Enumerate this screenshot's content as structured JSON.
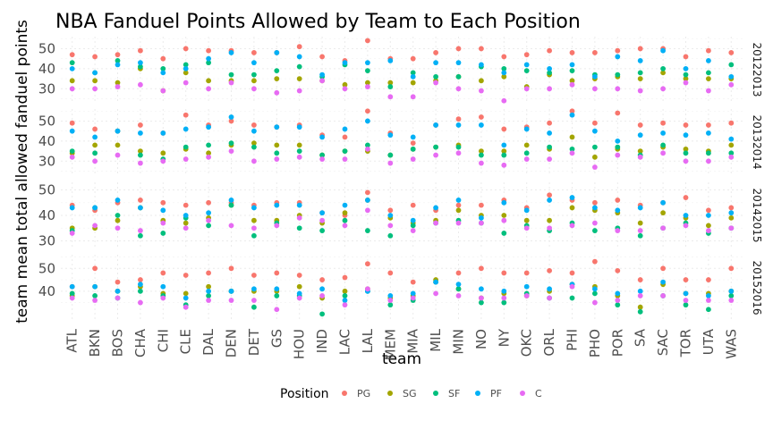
{
  "chart_data": {
    "type": "scatter",
    "title": "NBA Fanduel Points Allowed by Team to Each Position",
    "xlabel": "team",
    "ylabel": "team mean total allowed fanduel points",
    "legend": {
      "title": "Position",
      "placement": "bottom"
    },
    "categories": [
      "ATL",
      "BKN",
      "BOS",
      "CHA",
      "CHI",
      "CLE",
      "DAL",
      "DEN",
      "DET",
      "GS",
      "HOU",
      "IND",
      "LAC",
      "LAL",
      "MEM",
      "MIA",
      "MIL",
      "MIN",
      "NO",
      "NY",
      "OKC",
      "ORL",
      "PHI",
      "PHO",
      "POR",
      "SA",
      "SAC",
      "TOR",
      "UTA",
      "WAS"
    ],
    "positions": [
      {
        "name": "PG",
        "color": "#F8766D"
      },
      {
        "name": "SG",
        "color": "#A3A500"
      },
      {
        "name": "SF",
        "color": "#00BF7D"
      },
      {
        "name": "PF",
        "color": "#00B0F6"
      },
      {
        "name": "C",
        "color": "#E76BF3"
      }
    ],
    "panels": [
      {
        "season": "20122013",
        "ylim": [
          23,
          56
        ],
        "yticks": [
          30,
          40,
          50
        ],
        "series": {
          "PG": [
            47,
            46,
            47,
            49,
            45,
            50,
            49,
            49,
            48,
            48,
            51,
            46,
            44,
            54,
            45,
            45,
            48,
            50,
            50,
            46,
            47,
            49,
            48,
            48,
            49,
            50,
            50,
            46,
            49,
            48
          ],
          "SG": [
            34,
            34,
            33,
            40,
            29,
            38,
            34,
            34,
            34,
            35,
            35,
            34,
            32,
            33,
            33,
            33,
            34,
            36,
            34,
            36,
            31,
            37,
            34,
            35,
            36,
            35,
            38,
            35,
            35,
            35
          ],
          "SF": [
            43,
            38,
            44,
            41,
            40,
            42,
            43,
            37,
            37,
            39,
            41,
            36,
            42,
            39,
            31,
            38,
            36,
            36,
            41,
            40,
            39,
            38,
            39,
            37,
            37,
            38,
            40,
            37,
            38,
            42
          ],
          "PF": [
            40,
            38,
            42,
            43,
            38,
            40,
            45,
            48,
            43,
            48,
            46,
            37,
            43,
            43,
            44,
            36,
            43,
            43,
            42,
            38,
            42,
            40,
            42,
            36,
            46,
            44,
            49,
            40,
            44,
            36
          ],
          "C": [
            30,
            30,
            31,
            32,
            29,
            33,
            30,
            33,
            30,
            28,
            29,
            34,
            30,
            31,
            26,
            26,
            33,
            30,
            29,
            24,
            30,
            30,
            32,
            30,
            30,
            29,
            30,
            33,
            29,
            32
          ]
        }
      },
      {
        "season": "20132014",
        "ylim": [
          23,
          56
        ],
        "yticks": [
          30,
          40,
          50
        ],
        "series": {
          "PG": [
            49,
            46,
            45,
            48,
            44,
            53,
            48,
            50,
            48,
            47,
            48,
            43,
            42,
            55,
            44,
            39,
            48,
            51,
            52,
            46,
            47,
            49,
            55,
            49,
            54,
            48,
            49,
            48,
            48,
            49
          ],
          "SG": [
            34,
            38,
            38,
            35,
            34,
            36,
            34,
            38,
            39,
            38,
            38,
            33,
            35,
            35,
            33,
            36,
            37,
            38,
            35,
            35,
            38,
            36,
            42,
            32,
            36,
            35,
            37,
            36,
            35,
            38
          ],
          "SF": [
            35,
            34,
            45,
            33,
            31,
            37,
            38,
            39,
            37,
            34,
            35,
            33,
            35,
            38,
            33,
            36,
            37,
            37,
            33,
            33,
            34,
            37,
            36,
            37,
            37,
            33,
            38,
            34,
            34,
            34
          ],
          "PF": [
            45,
            42,
            45,
            44,
            44,
            46,
            47,
            52,
            45,
            47,
            47,
            42,
            46,
            50,
            43,
            42,
            48,
            48,
            48,
            38,
            46,
            44,
            53,
            45,
            40,
            43,
            44,
            43,
            44,
            41
          ],
          "C": [
            32,
            30,
            33,
            29,
            30,
            31,
            32,
            35,
            30,
            31,
            32,
            31,
            31,
            36,
            29,
            31,
            33,
            34,
            29,
            28,
            31,
            31,
            34,
            27,
            33,
            32,
            34,
            30,
            30,
            32
          ]
        }
      },
      {
        "season": "20142015",
        "ylim": [
          27,
          53
        ],
        "yticks": [
          30,
          40,
          50
        ],
        "series": {
          "PG": [
            44,
            42,
            45,
            46,
            45,
            44,
            45,
            45,
            44,
            45,
            45,
            41,
            40,
            49,
            42,
            44,
            42,
            44,
            44,
            46,
            43,
            48,
            46,
            45,
            46,
            44,
            45,
            47,
            42,
            43
          ],
          "SG": [
            35,
            35,
            38,
            43,
            38,
            37,
            39,
            44,
            38,
            38,
            40,
            37,
            41,
            46,
            39,
            37,
            38,
            42,
            40,
            40,
            38,
            38,
            43,
            42,
            41,
            37,
            41,
            39,
            36,
            39
          ],
          "SF": [
            34,
            43,
            40,
            32,
            33,
            39,
            36,
            44,
            32,
            37,
            35,
            34,
            38,
            34,
            32,
            36,
            37,
            38,
            37,
            33,
            36,
            34,
            37,
            34,
            35,
            32,
            35,
            37,
            33,
            35
          ],
          "PF": [
            43,
            43,
            46,
            43,
            42,
            40,
            41,
            46,
            43,
            44,
            44,
            41,
            44,
            46,
            40,
            38,
            43,
            46,
            39,
            45,
            42,
            46,
            47,
            43,
            42,
            43,
            45,
            40,
            40,
            41
          ],
          "C": [
            33,
            36,
            35,
            34,
            37,
            35,
            38,
            36,
            35,
            36,
            39,
            38,
            36,
            42,
            36,
            34,
            37,
            37,
            37,
            38,
            35,
            35,
            36,
            37,
            34,
            34,
            35,
            36,
            34,
            35
          ]
        }
      },
      {
        "season": "20152016",
        "ylim": [
          27,
          56
        ],
        "yticks": [
          40,
          50
        ],
        "series": {
          "PG": [
            42,
            50,
            44,
            45,
            48,
            47,
            48,
            50,
            47,
            48,
            47,
            45,
            46,
            52,
            48,
            44,
            44,
            48,
            50,
            48,
            48,
            49,
            48,
            53,
            49,
            45,
            50,
            45,
            45,
            50
          ],
          "SG": [
            38,
            42,
            40,
            42,
            39,
            39,
            42,
            40,
            40,
            40,
            42,
            37,
            40,
            41,
            37,
            38,
            45,
            41,
            37,
            39,
            38,
            40,
            43,
            42,
            38,
            33,
            43,
            39,
            39,
            40
          ],
          "SF": [
            39,
            38,
            37,
            40,
            38,
            34,
            38,
            40,
            33,
            38,
            38,
            30,
            38,
            40,
            34,
            36,
            44,
            41,
            35,
            35,
            39,
            37,
            37,
            39,
            34,
            31,
            38,
            34,
            32,
            38
          ],
          "PF": [
            42,
            42,
            40,
            43,
            42,
            37,
            40,
            40,
            41,
            41,
            39,
            41,
            36,
            40,
            38,
            39,
            44,
            43,
            41,
            40,
            42,
            41,
            43,
            41,
            39,
            40,
            44,
            39,
            38,
            40
          ],
          "C": [
            37,
            36,
            37,
            35,
            37,
            33,
            36,
            36,
            36,
            32,
            37,
            38,
            34,
            41,
            36,
            37,
            39,
            38,
            37,
            37,
            38,
            37,
            42,
            35,
            36,
            38,
            38,
            36,
            36,
            36
          ]
        }
      }
    ]
  }
}
